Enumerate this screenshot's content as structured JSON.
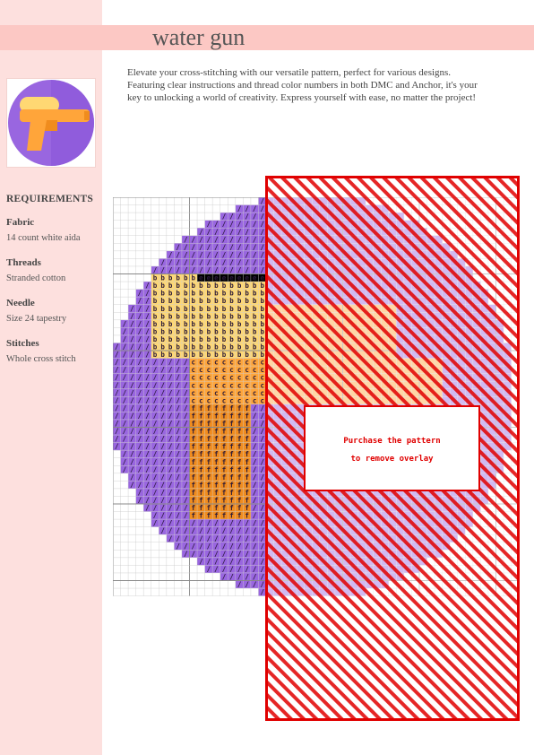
{
  "title": "water gun",
  "description": "Elevate your cross-stitching with our versatile pattern, perfect for various designs. Featuring clear instructions and thread color numbers in both DMC and Anchor, it's your key to unlocking a world of creativity. Express yourself with ease, no matter the project!",
  "requirements": {
    "heading": "REQUIREMENTS",
    "items": [
      {
        "label": "Fabric",
        "value": "14 count white aida"
      },
      {
        "label": "Threads",
        "value": "Stranded cotton"
      },
      {
        "label": "Needle",
        "value": "Size 24 tapestry"
      },
      {
        "label": "Stitches",
        "value": "Whole cross stitch"
      }
    ]
  },
  "overlay": {
    "line1": "Purchase the pattern",
    "line2": "to remove overlay"
  },
  "chart_symbols": {
    "purple": "/",
    "yellow": "b",
    "cream": "e",
    "orange": "c",
    "dark_orange": "f"
  },
  "colors": {
    "sidebar": "#fde0de",
    "title_band": "#fcc8c4",
    "purple": "#9966e0",
    "yellow": "#ffd873",
    "orange": "#ffa53a",
    "dark_orange": "#f08c1e",
    "overlay_red": "#e00000"
  }
}
